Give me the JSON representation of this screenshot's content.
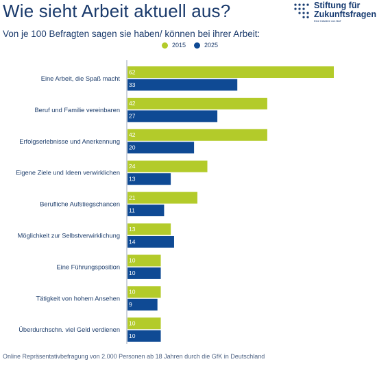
{
  "header": {
    "title": "Wie sieht Arbeit aktuell aus?",
    "subtitle": "Von je 100 Befragten sagen sie haben/ können bei ihrer Arbeit:"
  },
  "logo": {
    "name_line1": "Stiftung für",
    "name_line2": "Zukunftsfragen",
    "tagline": "Eine Initiative von BAT",
    "color": "#163a70"
  },
  "footer": {
    "source": "Online Repräsentativbefragung von 2.000 Personen ab 18 Jahren durch die GfK in Deutschland"
  },
  "chart_data": {
    "type": "bar",
    "orientation": "horizontal",
    "categories": [
      "Eine Arbeit, die Spaß macht",
      "Beruf und Familie vereinbaren",
      "Erfolgserlebnisse und Anerkennung",
      "Eigene Ziele und Ideen verwirklichen",
      "Berufliche Aufstiegschancen",
      "Möglichkeit zur Selbstverwirklichung",
      "Eine Führungsposition",
      "Tätigkeit von hohem Ansehen",
      "Überdurchschn. viel Geld verdienen"
    ],
    "series": [
      {
        "name": "2015",
        "color": "#b3cb2a",
        "values": [
          62,
          42,
          42,
          24,
          21,
          13,
          10,
          10,
          10
        ]
      },
      {
        "name": "2025",
        "color": "#0f4a94",
        "values": [
          33,
          27,
          20,
          13,
          11,
          14,
          10,
          9,
          10
        ]
      }
    ],
    "xlim": [
      0,
      62
    ],
    "legend": "top",
    "grid": false,
    "data_labels": "inside-left"
  }
}
